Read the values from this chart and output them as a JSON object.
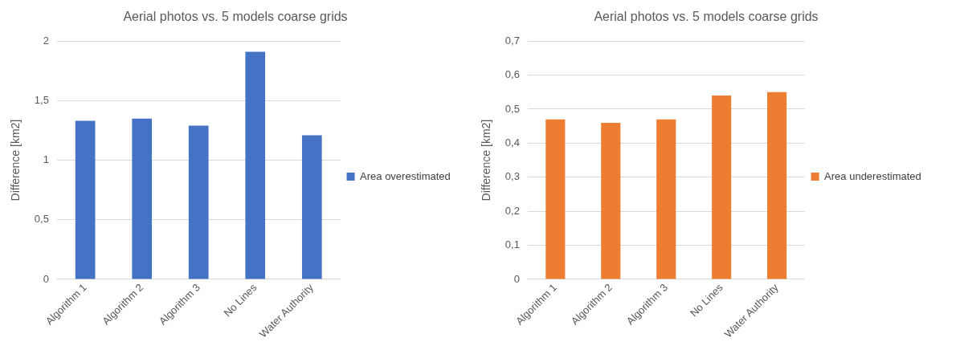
{
  "chart_data": [
    {
      "type": "bar",
      "title": "Aerial photos vs. 5 models coarse grids",
      "ylabel": "Difference [km2]",
      "categories": [
        "Algorithm 1",
        "Algorithm 2",
        "Algorithm 3",
        "No Lines",
        "Water Authority"
      ],
      "series": [
        {
          "name": "Area overestimated",
          "color": "#4472c4",
          "values": [
            1.33,
            1.35,
            1.29,
            1.91,
            1.21
          ]
        }
      ],
      "ylim": [
        0,
        2
      ],
      "yticks": [
        0,
        {
          "value": 0.5,
          "label": "0,5"
        },
        1,
        {
          "value": 1.5,
          "label": "1,5"
        },
        2
      ],
      "grid": "y",
      "legend": "right"
    },
    {
      "type": "bar",
      "title": "Aerial photos vs. 5 models coarse grids",
      "ylabel": "Difference [km2]",
      "categories": [
        "Algorithm 1",
        "Algorithm 2",
        "Algorithm 3",
        "No Lines",
        "Water Authority"
      ],
      "series": [
        {
          "name": "Area underestimated",
          "color": "#ed7d31",
          "values": [
            0.47,
            0.46,
            0.47,
            0.54,
            0.55
          ]
        }
      ],
      "ylim": [
        0,
        0.7
      ],
      "yticks": [
        0,
        {
          "value": 0.1,
          "label": "0,1"
        },
        {
          "value": 0.2,
          "label": "0,2"
        },
        {
          "value": 0.3,
          "label": "0,3"
        },
        {
          "value": 0.4,
          "label": "0,4"
        },
        {
          "value": 0.5,
          "label": "0,5"
        },
        {
          "value": 0.6,
          "label": "0,6"
        },
        {
          "value": 0.7,
          "label": "0,7"
        }
      ],
      "grid": "y",
      "legend": "right"
    }
  ]
}
